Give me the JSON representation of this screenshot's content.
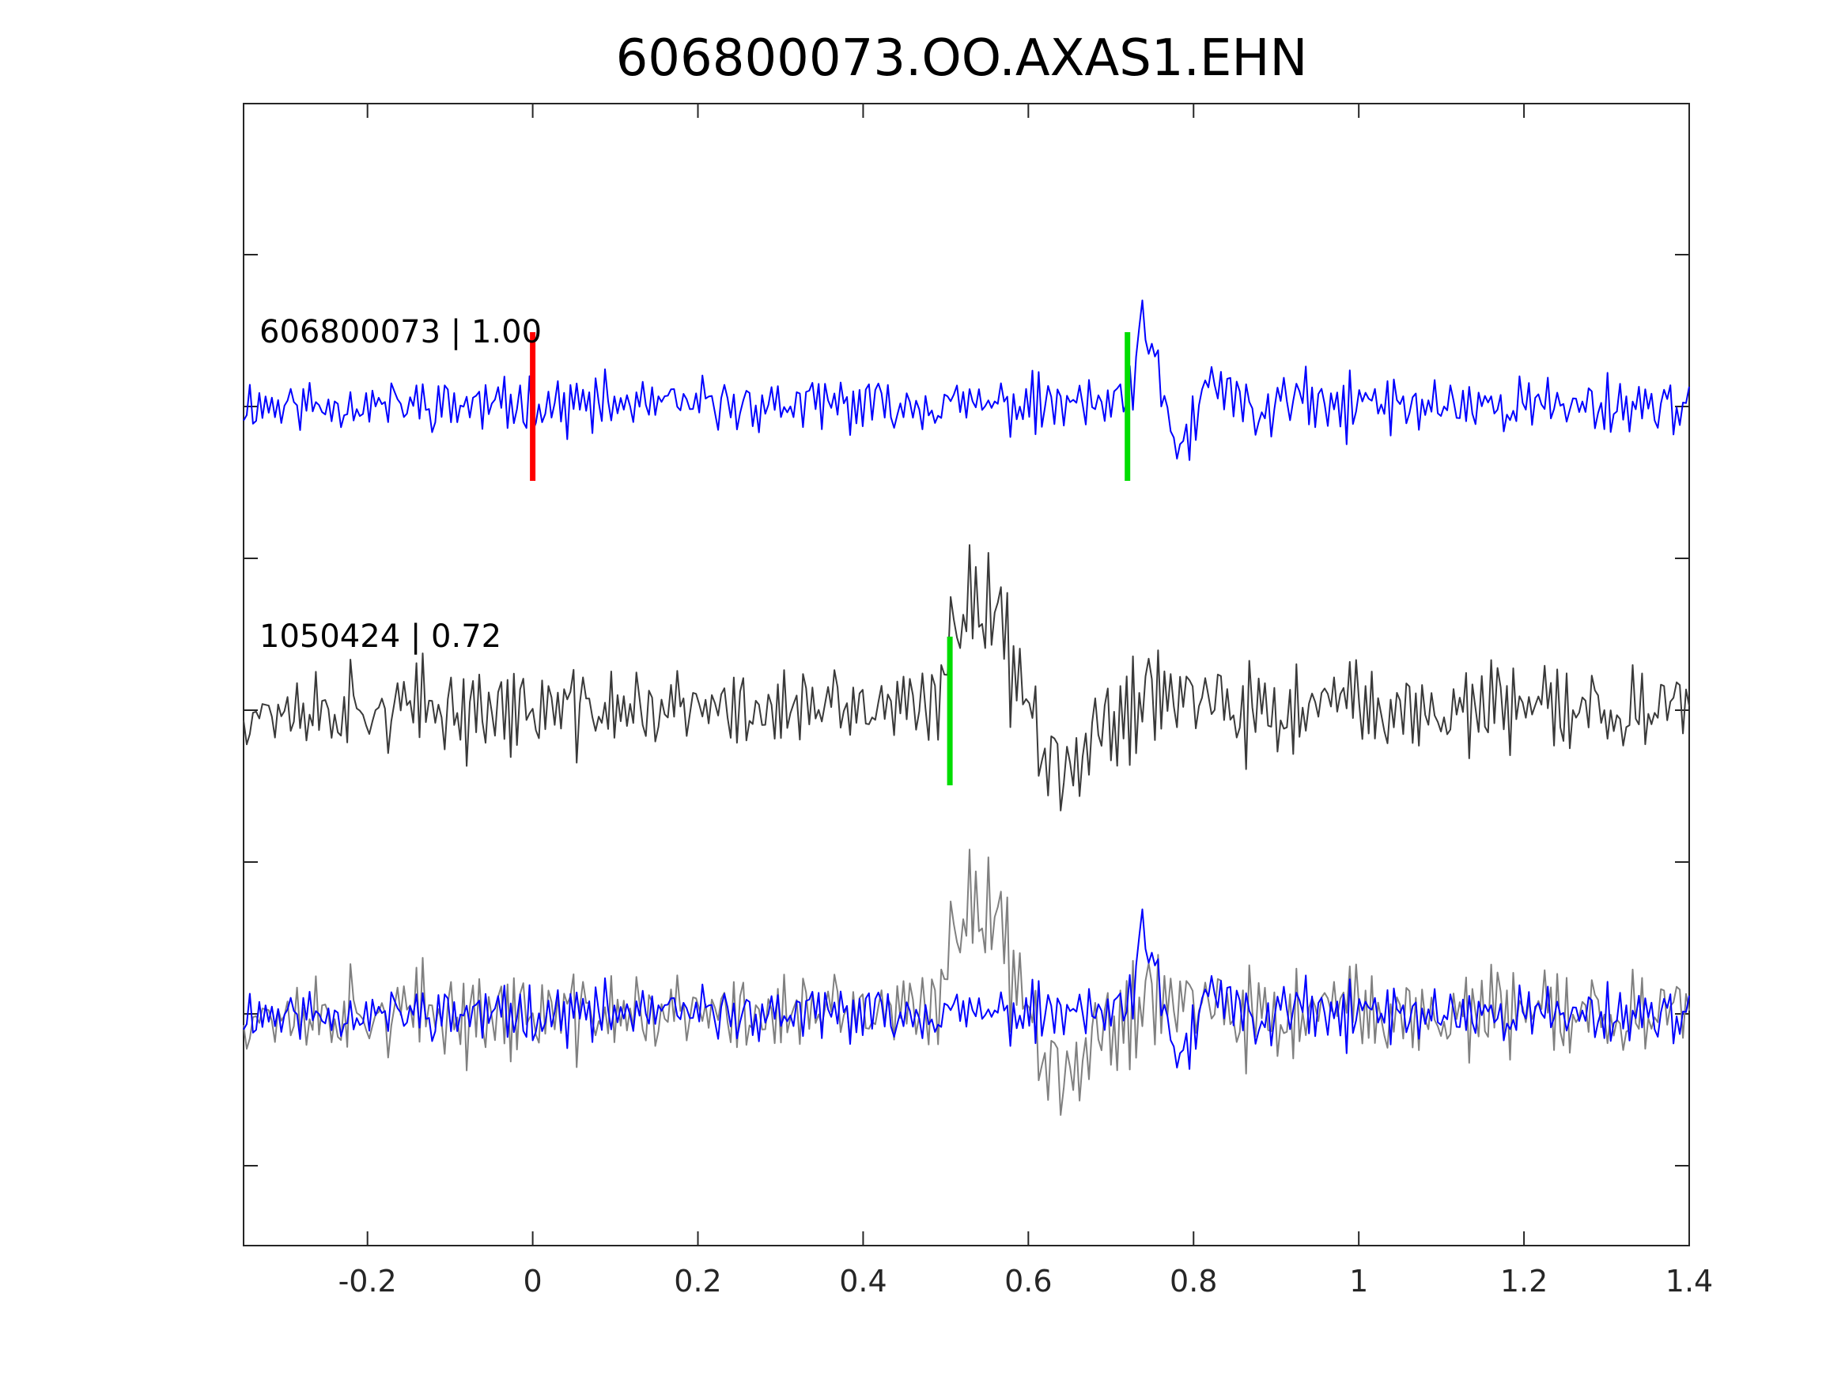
{
  "chart_data": {
    "type": "line",
    "title": "606800073.OO.AXAS1.EHN",
    "xlabel": "",
    "ylabel": "",
    "xlim": [
      -0.35,
      1.4
    ],
    "x_ticks": [
      -0.2,
      0,
      0.2,
      0.4,
      0.6,
      0.8,
      1,
      1.2,
      1.4
    ],
    "x_tick_labels": [
      "-0.2",
      "0",
      "0.2",
      "0.4",
      "0.6",
      "0.8",
      "1",
      "1.2",
      "1.4"
    ],
    "y_tick_count": 8,
    "grid": false,
    "series": [
      {
        "label": "606800073 | 1.00",
        "color": "#0000ff",
        "markers": [
          {
            "x": 0.0,
            "color": "#ff0000"
          },
          {
            "x": 0.72,
            "color": "#00dd00"
          }
        ]
      },
      {
        "label": "1050424 | 0.72",
        "color": "#3a3a3a",
        "markers": [
          {
            "x": 0.505,
            "color": "#00dd00"
          }
        ]
      }
    ],
    "overlay": {
      "colors": [
        "#0000ff",
        "#808080"
      ]
    }
  }
}
